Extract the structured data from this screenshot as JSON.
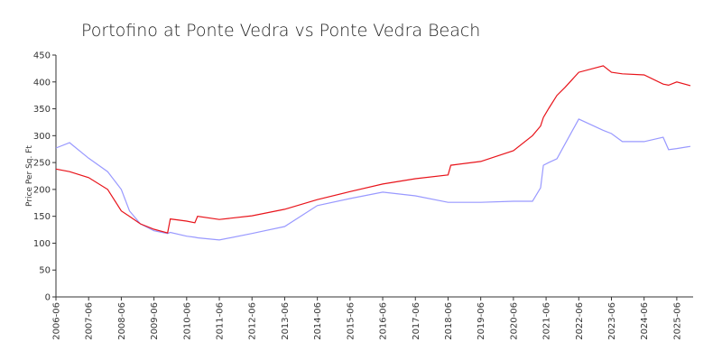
{
  "chart_data": {
    "type": "line",
    "title": "Portofino at Ponte Vedra vs Ponte Vedra Beach",
    "y_label": "Price Per Sq. Ft",
    "x": [
      "2006-06",
      "2006-11",
      "2007-06",
      "2008-01",
      "2008-06",
      "2008-09",
      "2009-01",
      "2009-06",
      "2009-11",
      "2009-12",
      "2010-06",
      "2010-09",
      "2010-10",
      "2011-06",
      "2012-06",
      "2013-06",
      "2014-06",
      "2015-06",
      "2016-06",
      "2017-06",
      "2018-06",
      "2018-07",
      "2019-06",
      "2020-06",
      "2021-01",
      "2021-04",
      "2021-05",
      "2021-07",
      "2021-10",
      "2022-01",
      "2022-06",
      "2023-03",
      "2023-06",
      "2023-10",
      "2024-06",
      "2025-01",
      "2025-03",
      "2025-06",
      "2025-11"
    ],
    "series": [
      {
        "color": "#e8141b",
        "values": [
          238,
          233,
          222,
          200,
          160,
          150,
          136,
          126,
          119,
          145,
          141,
          138,
          150,
          144,
          151,
          163,
          181,
          196,
          210,
          220,
          227,
          245,
          252,
          272,
          300,
          318,
          334,
          351,
          375,
          390,
          418,
          430,
          418,
          415,
          413,
          396,
          394,
          400,
          393
        ]
      },
      {
        "color": "#9999ff",
        "values": [
          277,
          287,
          258,
          233,
          200,
          160,
          136,
          123,
          118,
          120,
          113,
          111,
          110,
          106,
          118,
          131,
          170,
          183,
          195,
          188,
          176,
          176,
          176,
          178,
          178,
          203,
          245,
          250,
          257,
          285,
          331,
          310,
          304,
          289,
          289,
          297,
          274,
          276,
          280
        ]
      }
    ],
    "xlim": [
      "2006-06",
      "2025-12"
    ],
    "xticks": [
      "2006-06",
      "2007-06",
      "2008-06",
      "2009-06",
      "2010-06",
      "2011-06",
      "2012-06",
      "2013-06",
      "2014-06",
      "2015-06",
      "2016-06",
      "2017-06",
      "2018-06",
      "2019-06",
      "2020-06",
      "2021-06",
      "2022-06",
      "2023-06",
      "2024-06",
      "2025-06"
    ],
    "ylim": [
      0,
      450
    ],
    "yticks": [
      0,
      50,
      100,
      150,
      200,
      250,
      300,
      350,
      400,
      450
    ]
  }
}
